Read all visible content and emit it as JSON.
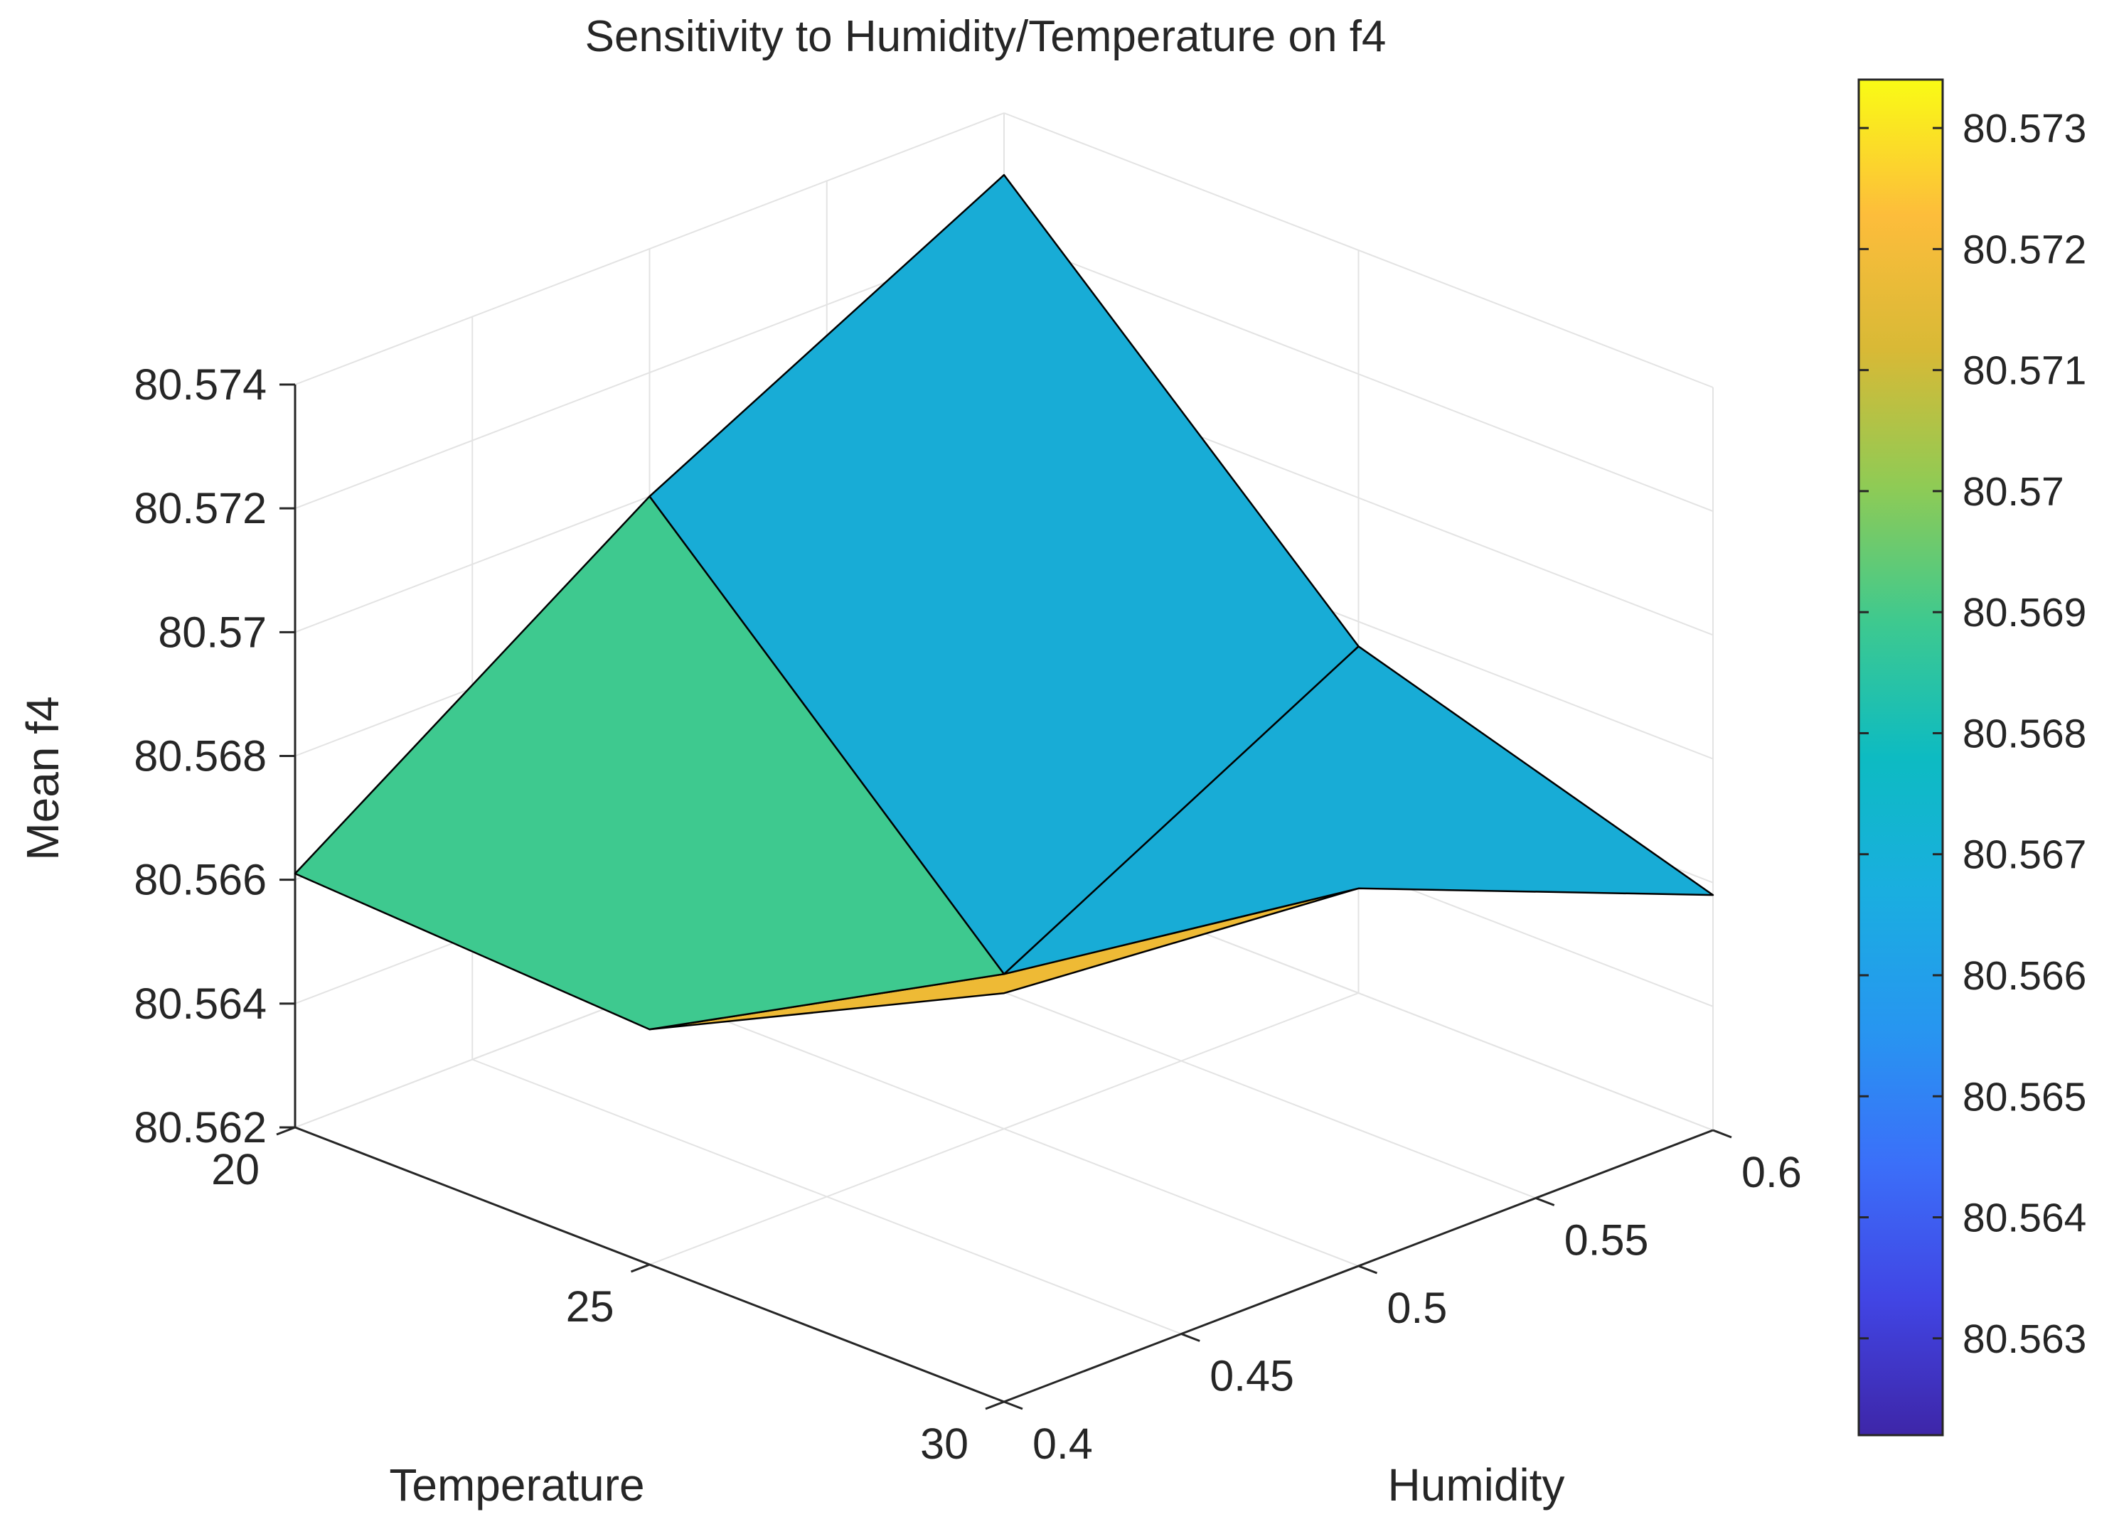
{
  "chart_data": {
    "type": "surface",
    "title": "Sensitivity to Humidity/Temperature on f4",
    "xlabel": "Temperature",
    "ylabel": "Humidity",
    "zlabel": "Mean f4",
    "x": [
      20,
      25,
      30
    ],
    "y": [
      0.4,
      0.5,
      0.6
    ],
    "z": [
      [
        80.5661,
        80.57,
        80.573
      ],
      [
        80.5658,
        80.5645,
        80.5676
      ],
      [
        80.5686,
        80.5681,
        80.5658
      ]
    ],
    "face_colors": [
      "#3ec98f",
      "#18acd6",
      "#eeba35",
      "#18acd6"
    ],
    "xlim": [
      20,
      30
    ],
    "ylim": [
      0.4,
      0.6
    ],
    "zlim": [
      80.562,
      80.574
    ],
    "x_ticks": [
      "20",
      "25",
      "30"
    ],
    "y_ticks": [
      "0.4",
      "0.45",
      "0.5",
      "0.55",
      "0.6"
    ],
    "z_ticks": [
      "80.562",
      "80.564",
      "80.566",
      "80.568",
      "80.57",
      "80.572",
      "80.574"
    ],
    "colorbar": {
      "colormap": "parula",
      "range": [
        80.5622,
        80.5734
      ],
      "ticks": [
        "80.563",
        "80.564",
        "80.565",
        "80.566",
        "80.567",
        "80.568",
        "80.569",
        "80.57",
        "80.571",
        "80.572",
        "80.573"
      ]
    },
    "grid": "on"
  }
}
